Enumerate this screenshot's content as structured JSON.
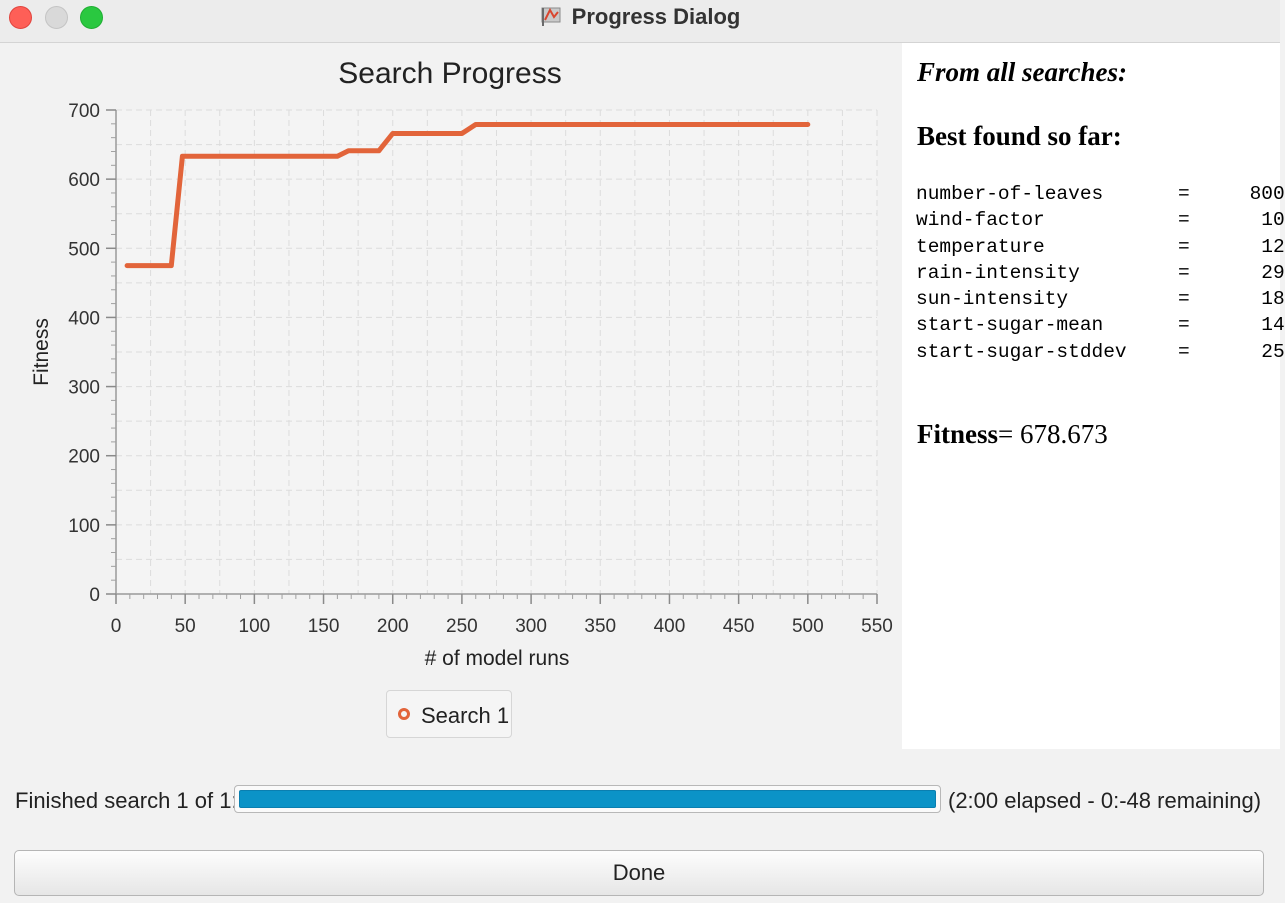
{
  "window": {
    "title": "Progress Dialog",
    "app_icon": "flag-icon"
  },
  "chart_data": {
    "type": "line",
    "title": "Search Progress",
    "xlabel": "# of model runs",
    "ylabel": "Fitness",
    "xlim": [
      0,
      550
    ],
    "ylim": [
      0,
      700
    ],
    "xticks": [
      "0",
      "50",
      "100",
      "150",
      "200",
      "250",
      "300",
      "350",
      "400",
      "450",
      "500",
      "550"
    ],
    "yticks": [
      "0",
      "100",
      "200",
      "300",
      "400",
      "500",
      "600",
      "700"
    ],
    "grid": true,
    "legend": "bottom-center",
    "series": [
      {
        "name": "Search 1",
        "color": "#e2643a",
        "x": [
          8,
          40,
          48,
          160,
          168,
          180,
          190,
          200,
          250,
          260,
          500
        ],
        "y": [
          475,
          475,
          633,
          633,
          641,
          641,
          641,
          666,
          666,
          679,
          679
        ]
      }
    ]
  },
  "info": {
    "heading": "From all searches:",
    "subheading": "Best found so far:",
    "params": [
      {
        "name": "number-of-leaves",
        "eq": "=",
        "value": "800"
      },
      {
        "name": "wind-factor",
        "eq": "=",
        "value": "10"
      },
      {
        "name": "temperature",
        "eq": "=",
        "value": "12"
      },
      {
        "name": "rain-intensity",
        "eq": "=",
        "value": "29"
      },
      {
        "name": "sun-intensity",
        "eq": "=",
        "value": "18"
      },
      {
        "name": "start-sugar-mean",
        "eq": "=",
        "value": "14"
      },
      {
        "name": "start-sugar-stddev",
        "eq": "=",
        "value": "25"
      }
    ],
    "fitness_label": "Fitness",
    "fitness_value": "= 678.673"
  },
  "status": {
    "label": "Finished search 1 of 1:",
    "progress": 1.0,
    "progress_color": "#0b93c7",
    "time_text": "(2:00 elapsed - 0:-48 remaining)"
  },
  "buttons": {
    "done_label": "Done"
  }
}
